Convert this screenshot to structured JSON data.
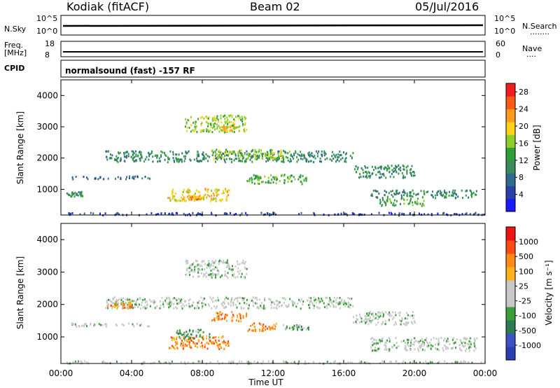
{
  "header": {
    "radar": "Kodiak (fitACF)",
    "beam": "Beam 02",
    "date": "05/Jul/2016"
  },
  "top_panels": {
    "nsky_label": "N.Sky",
    "nsearch_label": "N.Search",
    "nsearch_dots": "........",
    "left_ticks": [
      "10^5",
      "10^0"
    ],
    "right_ticks": [
      "10^5",
      "10^0"
    ],
    "freq_label": "Freq.",
    "freq_unit": "[MHz]",
    "freq_ticks": [
      "18",
      "8"
    ],
    "nave_label": "Nave",
    "nave_dots": "....",
    "nave_ticks": [
      "60",
      "0"
    ],
    "cpid_label": "CPID",
    "cpid_text": "normalsound (fast) -157 RF"
  },
  "colors": {
    "power_scale": [
      "#1a1aff",
      "#2a3fa8",
      "#2f6b8a",
      "#3a8a5a",
      "#2e9e3a",
      "#8ccf2a",
      "#ffd21a",
      "#ff9a1a",
      "#ff5a14",
      "#f01e1e"
    ],
    "velocity_scale": [
      "#2a3faf",
      "#3a52c2",
      "#2f7a55",
      "#3a9e3a",
      "#c8c8c8",
      "#c8c8c8",
      "#ffb21a",
      "#ff8a14",
      "#ff4a14",
      "#ee1414"
    ]
  },
  "chart_data": [
    {
      "type": "heatmap",
      "title": "",
      "xlabel": "Time UT",
      "ylabel": "Slant Range [km]",
      "x_ticks": [
        "00:00",
        "04:00",
        "08:00",
        "12:00",
        "16:00",
        "20:00",
        "00:00"
      ],
      "y_ticks": [
        "1000",
        "2000",
        "3000",
        "4000"
      ],
      "ylim": [
        180,
        4500
      ],
      "xlim_hours": [
        0,
        24
      ],
      "colorbar": {
        "label": "Power [dB]",
        "ticks": [
          "4",
          "8",
          "12",
          "16",
          "20",
          "24",
          "28"
        ],
        "range": [
          0,
          30
        ]
      },
      "echo_regions": [
        {
          "t_start": 0.3,
          "t_end": 24,
          "range_low": 200,
          "range_high": 280,
          "level": 1
        },
        {
          "t_start": 0.5,
          "t_end": 5.0,
          "range_low": 1350,
          "range_high": 1450,
          "level": 2
        },
        {
          "t_start": 0.3,
          "t_end": 1.2,
          "range_low": 800,
          "range_high": 950,
          "level": 3
        },
        {
          "t_start": 2.5,
          "t_end": 16.5,
          "range_low": 1900,
          "range_high": 2250,
          "level": 3
        },
        {
          "t_start": 8.5,
          "t_end": 13.0,
          "range_low": 2000,
          "range_high": 2300,
          "level": 5
        },
        {
          "t_start": 6.0,
          "t_end": 9.5,
          "range_low": 650,
          "range_high": 1050,
          "level": 6
        },
        {
          "t_start": 6.8,
          "t_end": 8.0,
          "range_low": 700,
          "range_high": 850,
          "level": 7
        },
        {
          "t_start": 7.0,
          "t_end": 10.5,
          "range_low": 2850,
          "range_high": 3400,
          "level": 5
        },
        {
          "t_start": 9.0,
          "t_end": 10.0,
          "range_low": 2900,
          "range_high": 3050,
          "level": 6
        },
        {
          "t_start": 10.5,
          "t_end": 14.0,
          "range_low": 1200,
          "range_high": 1500,
          "level": 4
        },
        {
          "t_start": 16.5,
          "t_end": 20.0,
          "range_low": 1400,
          "range_high": 1800,
          "level": 3
        },
        {
          "t_start": 17.5,
          "t_end": 23.5,
          "range_low": 750,
          "range_high": 1000,
          "level": 3
        },
        {
          "t_start": 18.0,
          "t_end": 20.5,
          "range_low": 500,
          "range_high": 750,
          "level": 4
        }
      ]
    },
    {
      "type": "heatmap",
      "title": "",
      "xlabel": "Time UT",
      "ylabel": "Slant Range [km]",
      "x_ticks": [
        "00:00",
        "04:00",
        "08:00",
        "12:00",
        "16:00",
        "20:00",
        "00:00"
      ],
      "y_ticks": [
        "1000",
        "2000",
        "3000",
        "4000"
      ],
      "ylim": [
        180,
        4500
      ],
      "xlim_hours": [
        0,
        24
      ],
      "colorbar": {
        "label": "Velocity [m s⁻¹]",
        "ticks": [
          "1000",
          "500",
          "100",
          "25",
          "-25",
          "-100",
          "-500",
          "-1000"
        ]
      },
      "echo_regions": [
        {
          "t_start": 0.3,
          "t_end": 24,
          "range_low": 200,
          "range_high": 280,
          "level": 4
        },
        {
          "t_start": 0.5,
          "t_end": 5.0,
          "range_low": 1350,
          "range_high": 1450,
          "level": 4
        },
        {
          "t_start": 2.5,
          "t_end": 16.5,
          "range_low": 1900,
          "range_high": 2250,
          "level": 4
        },
        {
          "t_start": 2.5,
          "t_end": 4.0,
          "range_low": 1900,
          "range_high": 2100,
          "level": 7
        },
        {
          "t_start": 6.0,
          "t_end": 9.5,
          "range_low": 650,
          "range_high": 1050,
          "level": 7
        },
        {
          "t_start": 6.5,
          "t_end": 8.5,
          "range_low": 950,
          "range_high": 1250,
          "level": 3
        },
        {
          "t_start": 7.0,
          "t_end": 10.5,
          "range_low": 2850,
          "range_high": 3400,
          "level": 4
        },
        {
          "t_start": 8.5,
          "t_end": 10.5,
          "range_low": 1500,
          "range_high": 1800,
          "level": 7
        },
        {
          "t_start": 10.5,
          "t_end": 12.5,
          "range_low": 1200,
          "range_high": 1450,
          "level": 7
        },
        {
          "t_start": 12.5,
          "t_end": 14.0,
          "range_low": 1250,
          "range_high": 1400,
          "level": 3
        },
        {
          "t_start": 16.5,
          "t_end": 20.0,
          "range_low": 1400,
          "range_high": 1800,
          "level": 4
        },
        {
          "t_start": 17.5,
          "t_end": 23.5,
          "range_low": 600,
          "range_high": 1000,
          "level": 4
        }
      ]
    }
  ]
}
